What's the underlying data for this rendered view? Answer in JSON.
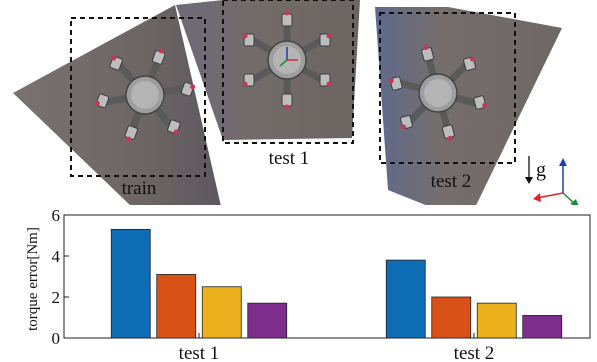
{
  "scene": {
    "labels": [
      "train",
      "test 1",
      "test 2"
    ],
    "gravity_label": "g"
  },
  "colors": {
    "series": [
      "#0d6cb4",
      "#d85218",
      "#ecb01f",
      "#7e2f8e"
    ],
    "panel": "#6f6865",
    "axis_red": "#d62728",
    "axis_green": "#1a8c3a",
    "axis_blue": "#1f3fae"
  },
  "chart_data": {
    "type": "bar",
    "categories": [
      "test 1",
      "test 2"
    ],
    "series": [
      {
        "values": [
          5.3,
          3.8
        ]
      },
      {
        "values": [
          3.1,
          2.0
        ]
      },
      {
        "values": [
          2.5,
          1.7
        ]
      },
      {
        "values": [
          1.7,
          1.1
        ]
      }
    ],
    "title": "",
    "xlabel": "",
    "ylabel": "torque error[Nm]",
    "ylim": [
      0,
      6
    ],
    "yticks": [
      "0",
      "2",
      "4",
      "6"
    ],
    "grid": false,
    "legend": "none"
  }
}
